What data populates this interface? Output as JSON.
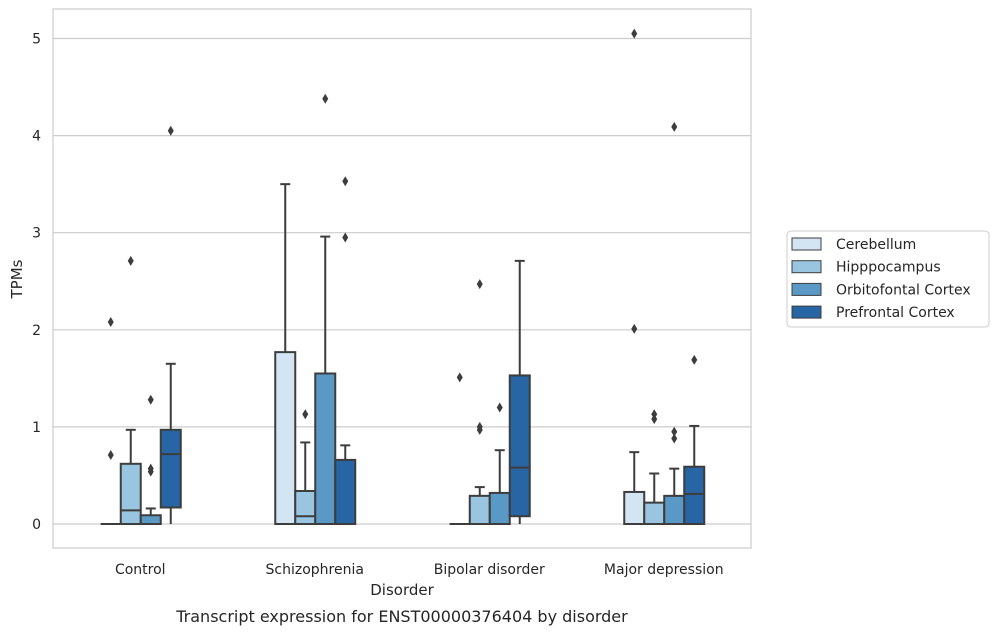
{
  "chart_data": {
    "type": "box",
    "title": "",
    "caption": "Transcript expression for ENST00000376404 by disorder",
    "xlabel": "Disorder",
    "ylabel": "TPMs",
    "ylim": [
      -0.25,
      5.3
    ],
    "yticks": [
      "0",
      "1",
      "2",
      "3",
      "4",
      "5"
    ],
    "categories": [
      "Control",
      "Schizophrenia",
      "Bipolar disorder",
      "Major depression"
    ],
    "grid": "horizontal",
    "legend_position": "right",
    "series": [
      {
        "name": "Cerebellum",
        "color": "#d3e4f2",
        "boxes": [
          {
            "whislo": 0,
            "q1": 0,
            "med": 0,
            "q3": 0,
            "whishi": 0,
            "fliers": [
              0.71,
              2.08
            ]
          },
          {
            "whislo": 0,
            "q1": 0,
            "med": 0,
            "q3": 1.77,
            "whishi": 3.5,
            "fliers": []
          },
          {
            "whislo": 0,
            "q1": 0,
            "med": 0,
            "q3": 0,
            "whishi": 0,
            "fliers": [
              1.51
            ]
          },
          {
            "whislo": 0,
            "q1": 0,
            "med": 0,
            "q3": 0.33,
            "whishi": 0.74,
            "fliers": [
              2.01,
              5.05
            ]
          }
        ]
      },
      {
        "name": "Hipppocampus",
        "color": "#9ac5e0",
        "boxes": [
          {
            "whislo": 0,
            "q1": 0,
            "med": 0.14,
            "q3": 0.62,
            "whishi": 0.97,
            "fliers": [
              2.71
            ]
          },
          {
            "whislo": 0,
            "q1": 0,
            "med": 0.08,
            "q3": 0.34,
            "whishi": 0.84,
            "fliers": [
              1.13
            ]
          },
          {
            "whislo": 0,
            "q1": 0,
            "med": 0,
            "q3": 0.29,
            "whishi": 0.38,
            "fliers": [
              0.97,
              1.0,
              2.47
            ]
          },
          {
            "whislo": 0,
            "q1": 0,
            "med": 0,
            "q3": 0.22,
            "whishi": 0.52,
            "fliers": [
              1.08,
              1.13
            ]
          }
        ]
      },
      {
        "name": "Orbitofontal Cortex",
        "color": "#5a98c6",
        "boxes": [
          {
            "whislo": 0,
            "q1": 0,
            "med": 0,
            "q3": 0.09,
            "whishi": 0.16,
            "fliers": [
              0.54,
              0.57,
              1.28
            ]
          },
          {
            "whislo": 0,
            "q1": 0,
            "med": 0,
            "q3": 1.55,
            "whishi": 2.96,
            "fliers": [
              4.38
            ]
          },
          {
            "whislo": 0,
            "q1": 0,
            "med": 0,
            "q3": 0.32,
            "whishi": 0.76,
            "fliers": [
              1.2
            ]
          },
          {
            "whislo": 0,
            "q1": 0,
            "med": 0,
            "q3": 0.29,
            "whishi": 0.57,
            "fliers": [
              0.88,
              0.95,
              4.09
            ]
          }
        ]
      },
      {
        "name": "Prefrontal Cortex",
        "color": "#2765a4",
        "boxes": [
          {
            "whislo": 0,
            "q1": 0.17,
            "med": 0.72,
            "q3": 0.97,
            "whishi": 1.65,
            "fliers": [
              4.05
            ]
          },
          {
            "whislo": 0,
            "q1": 0,
            "med": 0,
            "q3": 0.66,
            "whishi": 0.81,
            "fliers": [
              2.95,
              3.53
            ]
          },
          {
            "whislo": 0,
            "q1": 0.08,
            "med": 0.58,
            "q3": 1.53,
            "whishi": 2.71,
            "fliers": []
          },
          {
            "whislo": 0,
            "q1": 0,
            "med": 0.31,
            "q3": 0.59,
            "whishi": 1.01,
            "fliers": [
              1.69
            ]
          }
        ]
      }
    ]
  }
}
